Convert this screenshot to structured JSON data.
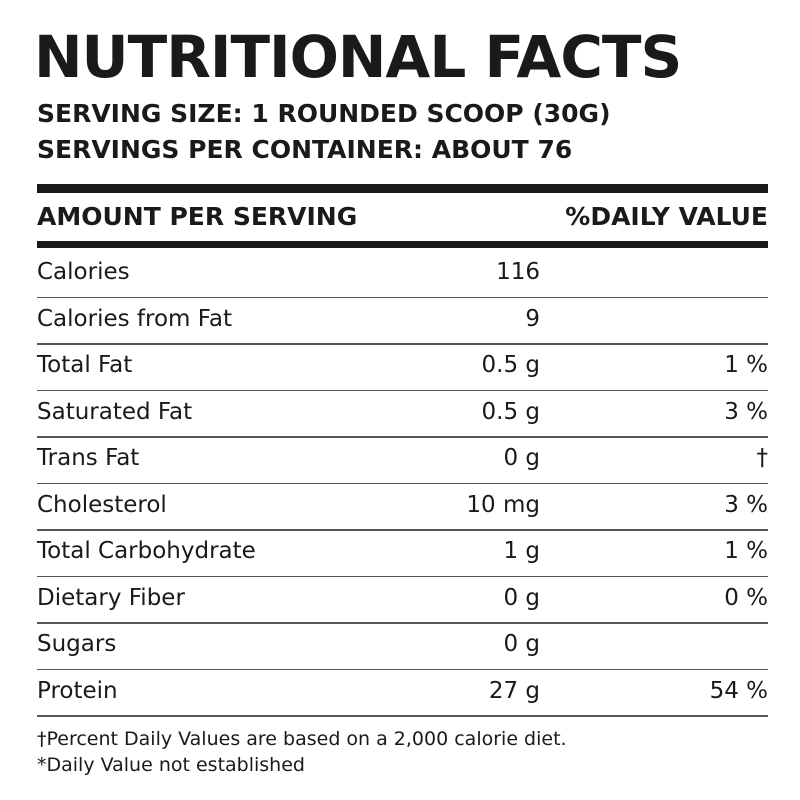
{
  "header": {
    "title": "NUTRITIONAL FACTS",
    "serving_size": "SERVING SIZE: 1 ROUNDED SCOOP (30G)",
    "servings_per_container": "SERVINGS PER CONTAINER: ABOUT 76"
  },
  "table": {
    "columns": [
      "AMOUNT PER SERVING",
      "%DAILY VALUE"
    ],
    "rows": [
      {
        "name": "Calories",
        "amount": "116"
      },
      {
        "name": "Calories from Fat",
        "amount": "9"
      },
      {
        "name": "Total Fat",
        "amount": "0.5 g",
        "daily_value": "1 %"
      },
      {
        "name": "Saturated Fat",
        "amount": "0.5 g",
        "daily_value": "3 %"
      },
      {
        "name": "Trans Fat",
        "amount": "0 g",
        "daily_value": "†"
      },
      {
        "name": "Cholesterol",
        "amount": "10 mg",
        "daily_value": "3 %"
      },
      {
        "name": "Total Carbohydrate",
        "amount": "1 g",
        "daily_value": "1 %"
      },
      {
        "name": "Dietary Fiber",
        "amount": "0 g",
        "daily_value": "0 %"
      },
      {
        "name": "Sugars",
        "amount": "0 g"
      },
      {
        "name": "Protein",
        "amount": "27 g",
        "daily_value": "54 %"
      }
    ]
  },
  "footnotes": [
    "†Percent Daily Values are based on a 2,000 calorie diet.",
    "*Daily Value not established"
  ]
}
